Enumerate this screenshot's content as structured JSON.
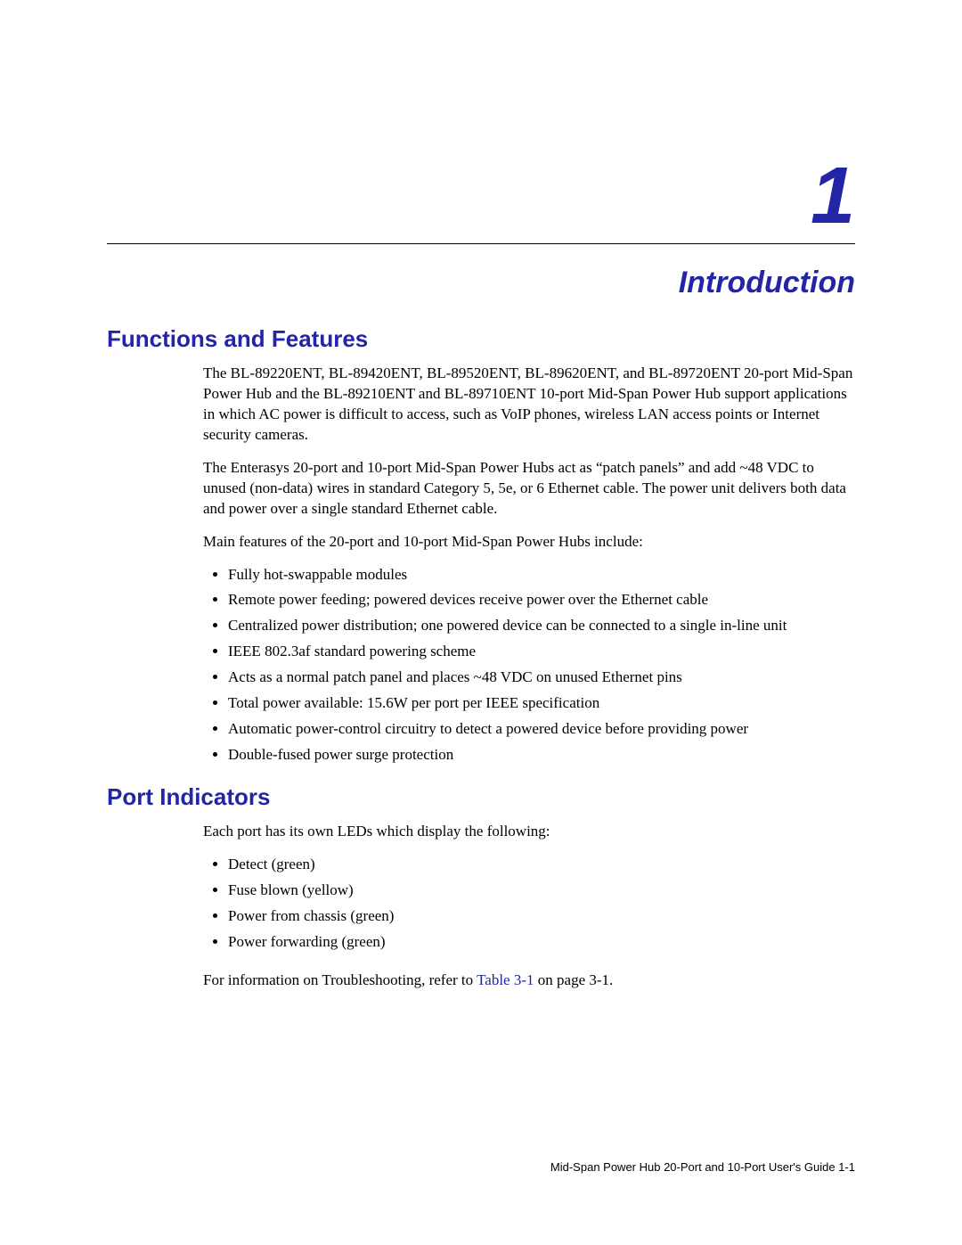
{
  "chapter": {
    "number": "1",
    "title": "Introduction",
    "number_color": "#2424a6",
    "title_color": "#2424a6",
    "number_fontsize": 90,
    "title_fontsize": 34
  },
  "section1": {
    "heading": "Functions and Features",
    "heading_color": "#2424a6",
    "heading_fontsize": 26,
    "para1": "The BL-89220ENT, BL-89420ENT, BL-89520ENT, BL-89620ENT, and BL-89720ENT 20-port Mid-Span Power Hub and the BL-89210ENT and BL-89710ENT 10-port Mid-Span Power Hub support applications in which AC power is difficult to access, such as VoIP phones, wireless LAN access points or Internet security cameras.",
    "para2": "The Enterasys 20-port and 10-port Mid-Span Power Hubs act as “patch panels” and add ~48 VDC to unused (non-data) wires in standard Category 5, 5e, or 6 Ethernet cable. The power unit delivers both data and power over a single standard Ethernet cable.",
    "para3": "Main features of the 20-port and 10-port Mid-Span Power Hubs include:",
    "bullets": [
      "Fully hot-swappable modules",
      "Remote power feeding; powered devices receive power over the Ethernet cable",
      "Centralized power distribution; one powered device can be connected to a single in-line unit",
      "IEEE 802.3af standard powering scheme",
      "Acts as a normal patch panel and places ~48 VDC on unused Ethernet pins",
      "Total power available: 15.6W per port per IEEE specification",
      "Automatic power-control circuitry to detect a powered device before providing power",
      "Double-fused power surge protection"
    ]
  },
  "section2": {
    "heading": "Port Indicators",
    "heading_color": "#2424a6",
    "heading_fontsize": 26,
    "para1": "Each port has its own LEDs which display the following:",
    "bullets": [
      "Detect (green)",
      "Fuse blown (yellow)",
      "Power from chassis (green)",
      "Power forwarding (green)"
    ],
    "para2_pre": "For information on Troubleshooting, refer to ",
    "para2_xref": "Table 3-1",
    "para2_post": " on page 3-1."
  },
  "footer": {
    "text": "Mid-Span Power Hub 20-Port and 10-Port User's Guide   1-1",
    "fontsize": 13
  },
  "colors": {
    "accent": "#2424a6",
    "text": "#000000",
    "background": "#ffffff",
    "rule": "#000000"
  }
}
